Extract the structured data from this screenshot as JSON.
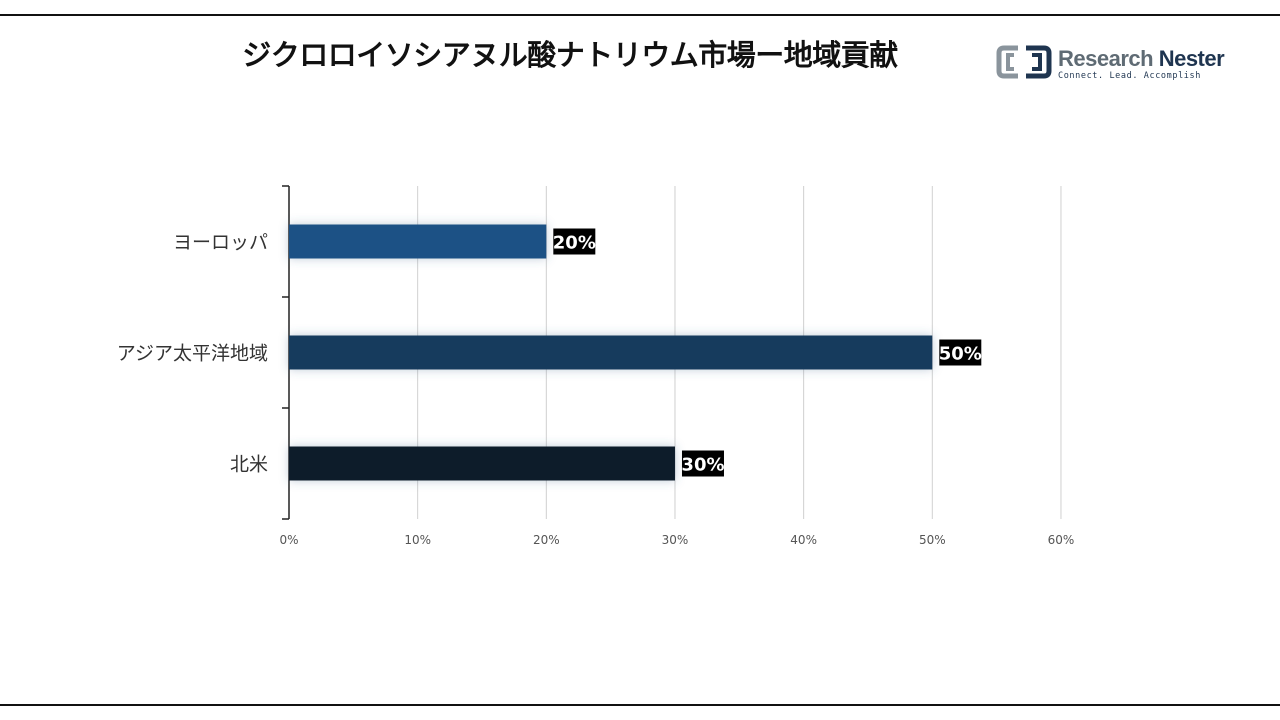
{
  "title": "ジクロロイソシアヌル酸ナトリウム市場ー地域貢献",
  "logo": {
    "name_part1": "Research",
    "name_part2": "Nester",
    "tagline": "Connect. Lead. Accomplish"
  },
  "colors": {
    "bar_europe": "#1e5185",
    "bar_apac": "#193a5d",
    "bar_na": "#0d1d2c",
    "label_bg": "#000000"
  },
  "chart_data": {
    "type": "bar",
    "orientation": "horizontal",
    "categories": [
      "ヨーロッパ",
      "アジア太平洋地域",
      "北米"
    ],
    "values": [
      20,
      50,
      30
    ],
    "value_labels": [
      "20%",
      "50%",
      "30%"
    ],
    "xlim": [
      0,
      60
    ],
    "x_ticks": [
      "0%",
      "10%",
      "20%",
      "30%",
      "40%",
      "50%",
      "60%"
    ],
    "grid": true,
    "legend": "none"
  }
}
